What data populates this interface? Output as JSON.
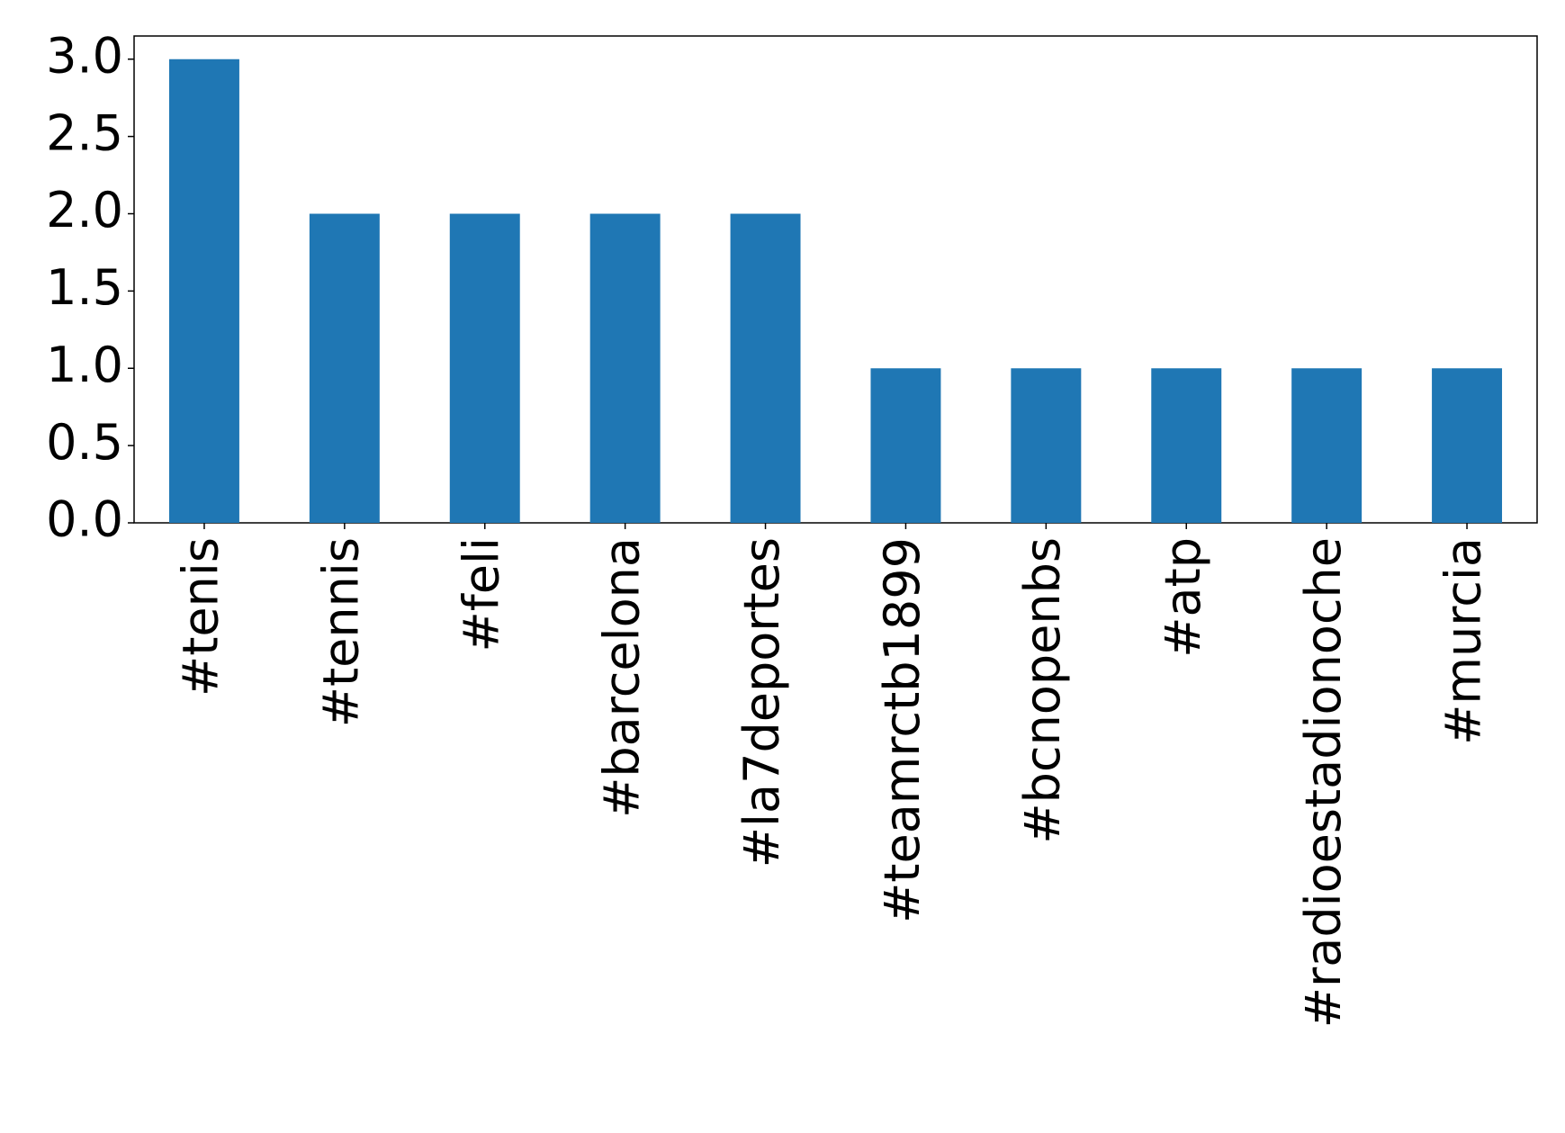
{
  "chart_data": {
    "type": "bar",
    "categories": [
      "#tenis",
      "#tennis",
      "#feli",
      "#barcelona",
      "#la7deportes",
      "#teamrctb1899",
      "#bcnopenbs",
      "#atp",
      "#radioestadionoche",
      "#murcia"
    ],
    "values": [
      3,
      2,
      2,
      2,
      2,
      1,
      1,
      1,
      1,
      1
    ],
    "color": "#1f77b4",
    "ylim": [
      0,
      3.15
    ],
    "yticks": [
      {
        "value": 0,
        "label": "0.0"
      },
      0.5,
      {
        "value": 1,
        "label": "1.0"
      },
      1.5,
      {
        "value": 2,
        "label": "2.0"
      },
      2.5,
      {
        "value": 3,
        "label": "3.0"
      }
    ],
    "grid": false
  }
}
